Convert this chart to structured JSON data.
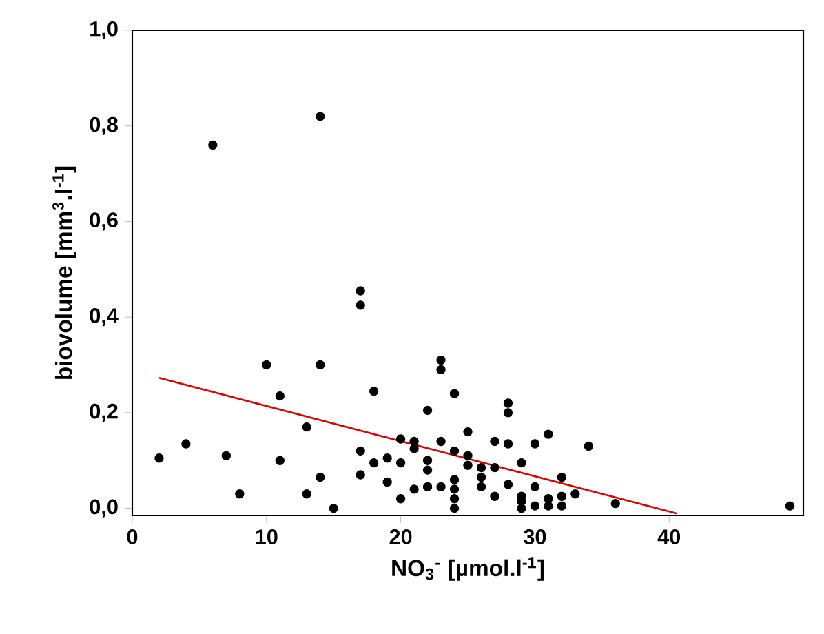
{
  "chart_data": {
    "type": "scatter",
    "xlabel": "NO$_{3}$$^{-}$ [µmol.l$^{-1}$]",
    "ylabel": "biovolume [mm$^{3}$.l$^{-1}$]",
    "xlim": [
      0,
      50
    ],
    "xticks": [
      0,
      10,
      20,
      30,
      40
    ],
    "ylim": [
      -0.015,
      1.0
    ],
    "yticks": [
      {
        "value": 0,
        "label": "0,0"
      },
      {
        "value": 0.2,
        "label": "0,2"
      },
      {
        "value": 0.4,
        "label": "0,4"
      },
      {
        "value": 0.6,
        "label": "0,6"
      },
      {
        "value": 0.8,
        "label": "0,8"
      },
      {
        "value": 1.0,
        "label": "1,0"
      }
    ],
    "marker": "circle",
    "series": [
      {
        "color": "#000000",
        "x": [
          2,
          4,
          6,
          7,
          8,
          10,
          11,
          11,
          13,
          13,
          14,
          14,
          14,
          15,
          17,
          17,
          17,
          17,
          18,
          18,
          19,
          19,
          20,
          20,
          20,
          21,
          21,
          21,
          22,
          22,
          22,
          22,
          23,
          23,
          23,
          23,
          24,
          24,
          24,
          24,
          24,
          24,
          25,
          25,
          25,
          26,
          26,
          26,
          27,
          27,
          27,
          28,
          28,
          28,
          28,
          29,
          29,
          29,
          29,
          30,
          30,
          30,
          31,
          31,
          31,
          32,
          32,
          32,
          33,
          34,
          36,
          49
        ],
        "values": [
          0.105,
          0.135,
          0.76,
          0.11,
          0.03,
          0.3,
          0.235,
          0.1,
          0.17,
          0.03,
          0.82,
          0.3,
          0.065,
          0.0,
          0.455,
          0.425,
          0.12,
          0.07,
          0.245,
          0.095,
          0.105,
          0.055,
          0.145,
          0.095,
          0.02,
          0.14,
          0.125,
          0.04,
          0.205,
          0.1,
          0.08,
          0.045,
          0.31,
          0.29,
          0.14,
          0.045,
          0.24,
          0.06,
          0.04,
          0.02,
          0.0,
          0.12,
          0.16,
          0.11,
          0.09,
          0.085,
          0.065,
          0.045,
          0.14,
          0.085,
          0.025,
          0.22,
          0.2,
          0.135,
          0.05,
          0.095,
          0.025,
          0.015,
          0.0,
          0.135,
          0.045,
          0.005,
          0.155,
          0.02,
          0.005,
          0.065,
          0.025,
          0.005,
          0.03,
          0.13,
          0.01,
          0.005
        ]
      },
      {
        "type": "line",
        "color": "#e00000",
        "marker": "none",
        "x": [
          2,
          40.6
        ],
        "values": [
          0.273,
          -0.011
        ]
      }
    ]
  }
}
